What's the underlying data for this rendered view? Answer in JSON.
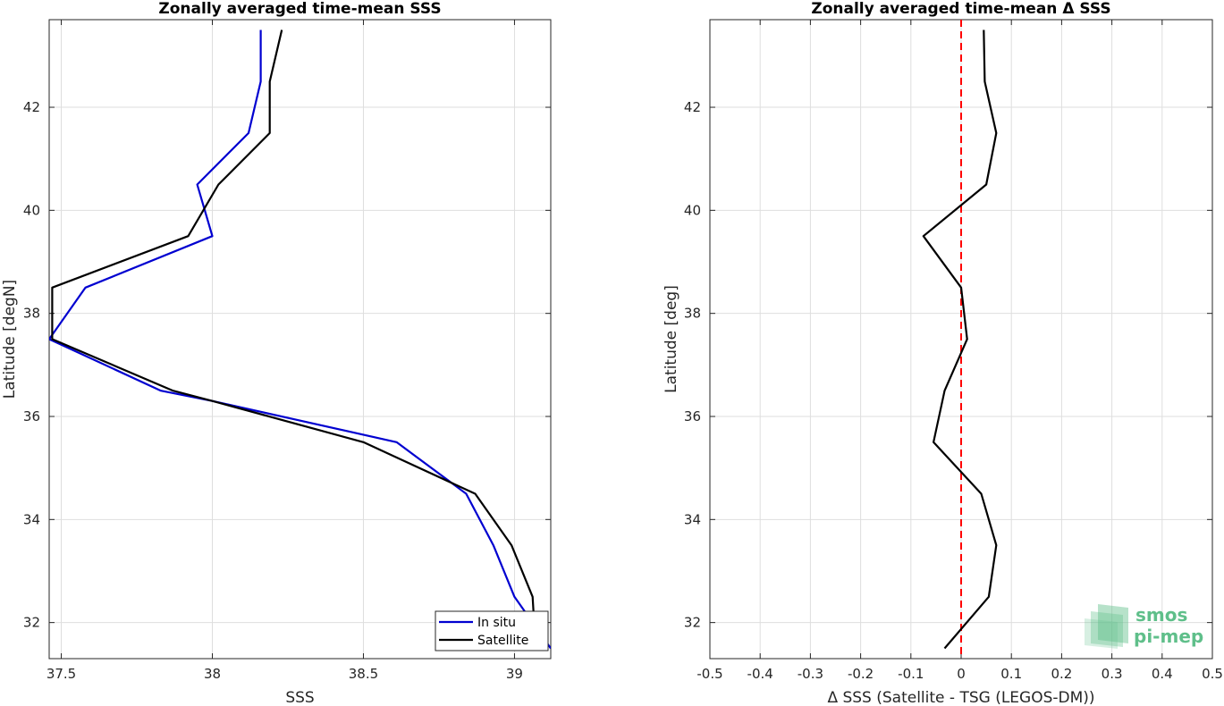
{
  "chart_data": [
    {
      "type": "line",
      "title": "Zonally averaged time-mean SSS",
      "xlabel": "SSS",
      "ylabel": "Latitude [degN]",
      "xlim": [
        37.46,
        39.12
      ],
      "ylim": [
        31.3,
        43.7
      ],
      "xticks": [
        37.5,
        38,
        38.5,
        39
      ],
      "xticklabels": [
        "37.5",
        "38",
        "38.5",
        "39"
      ],
      "yticks": [
        32,
        34,
        36,
        38,
        40,
        42
      ],
      "yticklabels": [
        "32",
        "34",
        "36",
        "38",
        "40",
        "42"
      ],
      "grid": true,
      "legend_location": "bottom-right",
      "series": [
        {
          "name": "In situ",
          "color": "#0000d0",
          "points": [
            [
              39.12,
              31.5
            ],
            [
              39.0,
              32.5
            ],
            [
              38.93,
              33.5
            ],
            [
              38.84,
              34.5
            ],
            [
              38.61,
              35.5
            ],
            [
              38.0,
              36.3
            ],
            [
              37.83,
              36.5
            ],
            [
              37.46,
              37.5
            ],
            [
              37.58,
              38.5
            ],
            [
              38.0,
              39.5
            ],
            [
              37.95,
              40.5
            ],
            [
              38.12,
              41.5
            ],
            [
              38.16,
              42.5
            ],
            [
              38.16,
              43.5
            ]
          ]
        },
        {
          "name": "Satellite",
          "color": "#000000",
          "points": [
            [
              39.07,
              31.5
            ],
            [
              39.06,
              32.5
            ],
            [
              38.99,
              33.5
            ],
            [
              38.87,
              34.5
            ],
            [
              38.5,
              35.5
            ],
            [
              38.0,
              36.3
            ],
            [
              37.87,
              36.5
            ],
            [
              37.47,
              37.5
            ],
            [
              37.47,
              38.5
            ],
            [
              37.92,
              39.5
            ],
            [
              38.02,
              40.5
            ],
            [
              38.19,
              41.5
            ],
            [
              38.19,
              42.5
            ],
            [
              38.23,
              43.5
            ]
          ]
        }
      ]
    },
    {
      "type": "line",
      "title": "Zonally averaged time-mean Δ SSS",
      "xlabel": "Δ SSS (Satellite - TSG (LEGOS-DM))",
      "ylabel": "Latitude [deg]",
      "xlim": [
        -0.5,
        0.5
      ],
      "ylim": [
        31.3,
        43.7
      ],
      "xticks": [
        -0.5,
        -0.4,
        -0.3,
        -0.2,
        -0.1,
        0,
        0.1,
        0.2,
        0.3,
        0.4,
        0.5
      ],
      "xticklabels": [
        "-0.5",
        "-0.4",
        "-0.3",
        "-0.2",
        "-0.1",
        "0",
        "0.1",
        "0.2",
        "0.3",
        "0.4",
        "0.5"
      ],
      "yticks": [
        32,
        34,
        36,
        38,
        40,
        42
      ],
      "yticklabels": [
        "32",
        "34",
        "36",
        "38",
        "40",
        "42"
      ],
      "grid": true,
      "reference_line": {
        "x": 0,
        "color": "#ff0000",
        "style": "dashed"
      },
      "series": [
        {
          "color": "#000000",
          "points": [
            [
              -0.033,
              31.5
            ],
            [
              0.055,
              32.5
            ],
            [
              0.07,
              33.5
            ],
            [
              0.04,
              34.5
            ],
            [
              -0.055,
              35.5
            ],
            [
              -0.033,
              36.5
            ],
            [
              0.012,
              37.5
            ],
            [
              0.0,
              38.5
            ],
            [
              -0.075,
              39.5
            ],
            [
              0.05,
              40.5
            ],
            [
              0.07,
              41.5
            ],
            [
              0.047,
              42.5
            ],
            [
              0.045,
              43.5
            ]
          ]
        }
      ]
    }
  ],
  "logo": {
    "line1": "smos",
    "line2": "pi-mep",
    "color": "#5fbf8a"
  }
}
